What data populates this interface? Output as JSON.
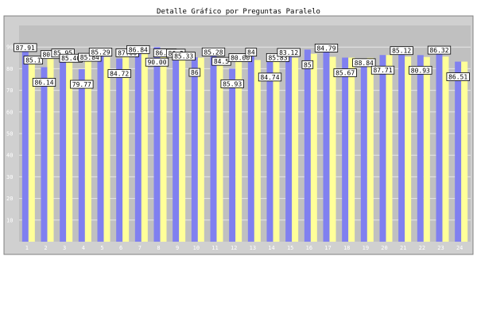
{
  "chart_data": {
    "type": "bar",
    "title": "Detalle Gráfico por Preguntas Paralelo",
    "xlabel": "",
    "ylabel": "",
    "ylim": [
      0,
      100
    ],
    "grid": true,
    "categories": [
      "1",
      "2",
      "3",
      "4",
      "5",
      "6",
      "7",
      "8",
      "9",
      "10",
      "11",
      "12",
      "13",
      "14",
      "15",
      "16",
      "17",
      "18",
      "19",
      "20",
      "21",
      "22",
      "23",
      "24"
    ],
    "y_ticks": [
      10,
      20,
      30,
      40,
      50,
      60,
      70,
      80,
      90
    ],
    "series": [
      {
        "color": "#8080f0",
        "values": [
          87.91,
          80.7,
          85.4,
          79.77,
          85.84,
          84.72,
          87.0,
          90.0,
          85.33,
          85.28,
          85.93,
          80.0,
          85.83,
          83.12,
          85.67,
          88.84,
          87.71,
          85.12,
          80.93,
          86.32,
          86.51,
          86.28,
          86.74,
          83.26
        ]
      },
      {
        "color": "#ffff99",
        "values": [
          85.1,
          86.14,
          85.95,
          84.9,
          85.29,
          87.0,
          86.84,
          86.91,
          86.9,
          85.1,
          84.5,
          84.74,
          84.0,
          84.79,
          85.0,
          86.9,
          85.5,
          85.12,
          85.0,
          86.3,
          85.6,
          85.4,
          85.6,
          83.26
        ]
      }
    ],
    "data_labels": [
      "87.91",
      "85.1",
      "86.14",
      "80.70",
      "85.95",
      "85.40",
      "79.77",
      "85.84",
      "85.29",
      "84.72",
      "87.00",
      "86.84",
      "90.00",
      "86.91",
      "86.9",
      "85.33",
      "86",
      "85.28",
      "84.5",
      "85.93",
      "80.00",
      "84",
      "84.74",
      "85.83",
      "83.12",
      "85",
      "84.79",
      "85.67",
      "88.84",
      "87.71",
      "85.12",
      "80.93",
      "86.32",
      "86.51",
      "86.28",
      "86.74",
      "83.26"
    ],
    "colors": {
      "panel": "#d0d0d0",
      "plot": "#c0c0c0",
      "grid": "#e6e6e6",
      "label_bg": "#ffffff"
    }
  }
}
